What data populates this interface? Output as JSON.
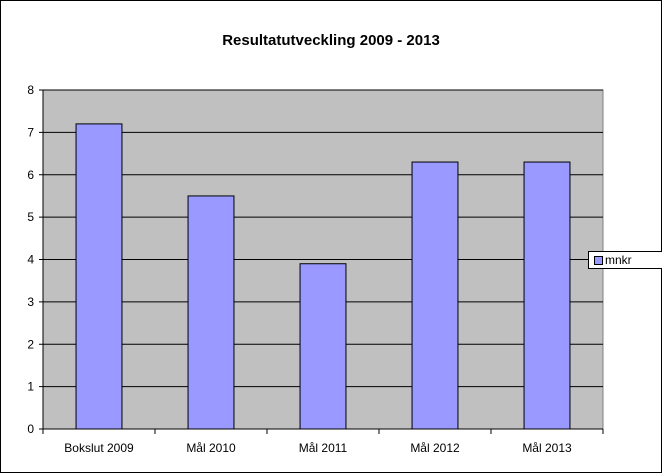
{
  "chart_data": {
    "type": "bar",
    "title": "Resultatutveckling 2009 - 2013",
    "xlabel": "",
    "ylabel": "",
    "categories": [
      "Bokslut 2009",
      "Mål 2010",
      "Mål 2011",
      "Mål 2012",
      "Mål 2013"
    ],
    "series": [
      {
        "name": "mnkr",
        "values": [
          7.2,
          5.5,
          3.9,
          6.3,
          6.3
        ]
      }
    ],
    "ylim": [
      0,
      8
    ],
    "yticks": [
      "0",
      "1",
      "2",
      "3",
      "4",
      "5",
      "6",
      "7",
      "8"
    ],
    "grid": true,
    "legend_position": "right",
    "colors": {
      "bar": "#9999ff",
      "plot_background": "#c0c0c0"
    }
  }
}
